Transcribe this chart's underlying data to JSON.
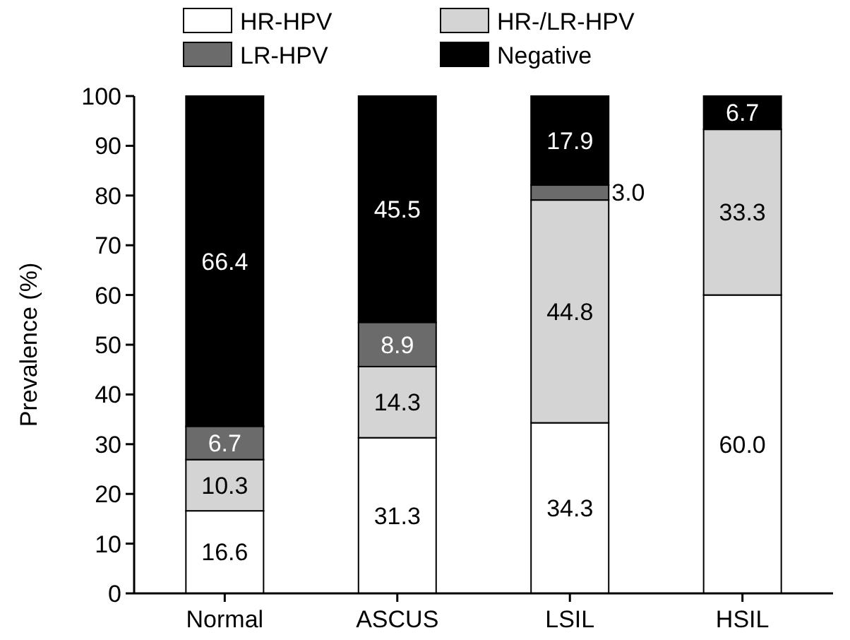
{
  "chart_data": {
    "type": "bar",
    "stacked": true,
    "ylabel": "Prevalence (%)",
    "categories": [
      "Normal",
      "ASCUS",
      "LSIL",
      "HSIL"
    ],
    "ylim": [
      0,
      100
    ],
    "yticks": [
      0,
      10,
      20,
      30,
      40,
      50,
      60,
      70,
      80,
      90,
      100
    ],
    "grid": false,
    "legend": "top",
    "series": [
      {
        "name": "HR-HPV",
        "color": "#ffffff",
        "values": [
          16.6,
          31.3,
          34.3,
          60.0
        ],
        "value_labels": [
          "16.6",
          "31.3",
          "34.3",
          "60.0"
        ]
      },
      {
        "name": "HR-/LR-HPV",
        "color": "#d4d4d4",
        "values": [
          10.3,
          14.3,
          44.8,
          33.3
        ],
        "value_labels": [
          "10.3",
          "14.3",
          "44.8",
          "33.3"
        ]
      },
      {
        "name": "LR-HPV",
        "color": "#6b6b6b",
        "values": [
          6.7,
          8.9,
          3.0,
          null
        ],
        "value_labels": [
          "6.7",
          "8.9",
          "3.0",
          null
        ]
      },
      {
        "name": "Negative",
        "color": "#000000",
        "values": [
          66.4,
          45.5,
          17.9,
          6.7
        ],
        "value_labels": [
          "66.4",
          "45.5",
          "17.9",
          "6.7"
        ]
      }
    ]
  }
}
